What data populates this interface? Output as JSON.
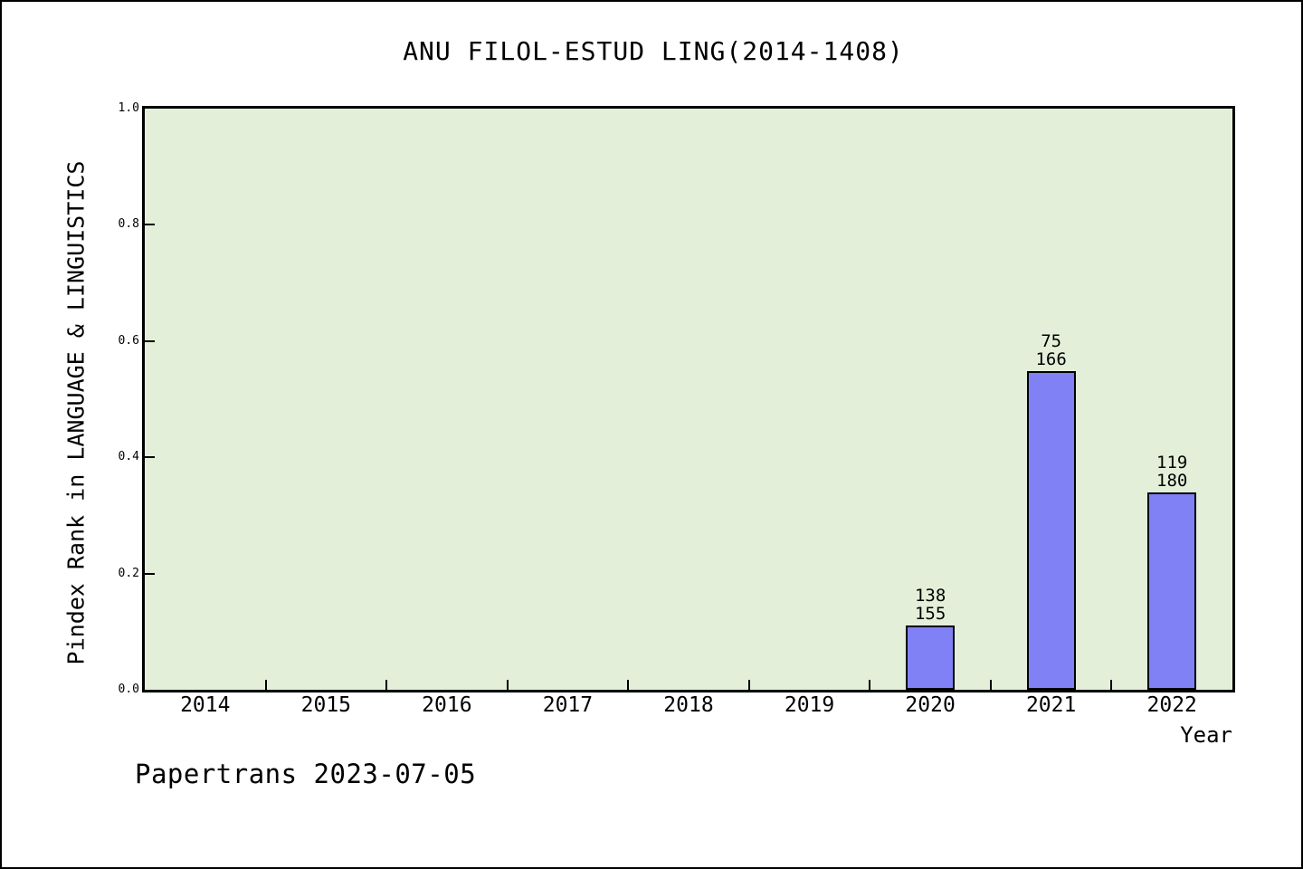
{
  "page": {
    "footer": "Papertrans 2023-07-05"
  },
  "chart_data": {
    "type": "bar",
    "title": "ANU FILOL-ESTUD LING(2014-1408)",
    "xlabel": "Year",
    "ylabel": "Pindex Rank in LANGUAGE & LINGUISTICS",
    "categories": [
      "2014",
      "2015",
      "2016",
      "2017",
      "2018",
      "2019",
      "2020",
      "2021",
      "2022"
    ],
    "values": [
      null,
      null,
      null,
      null,
      null,
      null,
      0.11,
      0.548,
      0.339
    ],
    "bar_labels": [
      null,
      null,
      null,
      null,
      null,
      null,
      [
        "138",
        "155"
      ],
      [
        "75",
        "166"
      ],
      [
        "119",
        "180"
      ]
    ],
    "ylim": [
      0.0,
      1.0
    ],
    "yticks": [
      "0.0",
      "0.2",
      "0.4",
      "0.6",
      "0.8",
      "1.0"
    ],
    "grid": "off",
    "legend": "none",
    "tick_direction": "in",
    "colors": {
      "bar_fill": "#8181f6",
      "bar_border": "#000000",
      "plot_background": "#e3efd9",
      "page_background": "#ffffff",
      "axis": "#000000",
      "text": "#000000"
    }
  }
}
